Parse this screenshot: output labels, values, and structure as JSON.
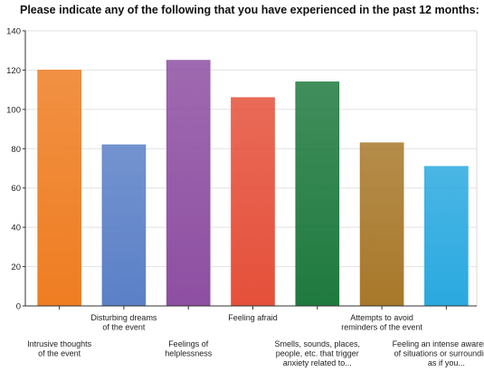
{
  "chart_data": {
    "type": "bar",
    "title": "Please indicate any of the following that you have experienced in the past 12 months:",
    "categories": [
      [
        "Intrusive thoughts",
        "of the event"
      ],
      [
        "Disturbing dreams",
        "of the event"
      ],
      [
        "Feelings of",
        "helplessness"
      ],
      [
        "Feeling afraid"
      ],
      [
        "Smells, sounds, places,",
        "people, etc. that trigger",
        "anxiety related to..."
      ],
      [
        "Attempts to avoid",
        "reminders of the event"
      ],
      [
        "Feeling an intense awareness",
        "of situations or surroundings,",
        "as if you..."
      ]
    ],
    "values": [
      120,
      82,
      125,
      106,
      114,
      83,
      71
    ],
    "colors": [
      "#ef7d22",
      "#5b80c7",
      "#8e4fa2",
      "#e5503a",
      "#1f7a3f",
      "#a8782a",
      "#2aa9e0"
    ],
    "ylim": [
      0,
      140
    ],
    "yticks": [
      0,
      20,
      40,
      60,
      80,
      100,
      120,
      140
    ],
    "grid": true,
    "xlabel": "",
    "ylabel": ""
  }
}
